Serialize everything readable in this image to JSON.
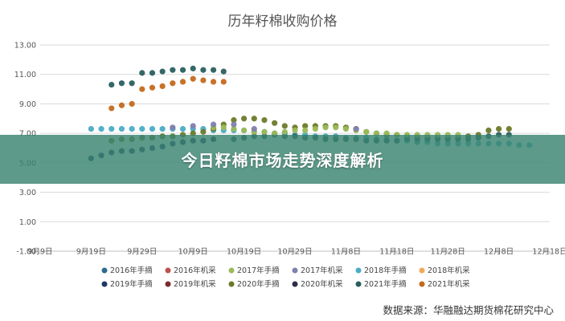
{
  "chart_data": {
    "type": "scatter",
    "title": "历年籽棉收购价格",
    "xlabel": "",
    "ylabel": "",
    "ylim": [
      -1,
      13
    ],
    "yticks": [
      "-1.00",
      "1.00",
      "3.00",
      "5.00",
      "7.00",
      "9.00",
      "11.00",
      "13.00"
    ],
    "xlim": [
      0,
      100
    ],
    "xticks": [
      "9月9日",
      "9月19日",
      "9月29日",
      "10月9日",
      "10月19日",
      "10月29日",
      "11月8日",
      "11月18日",
      "11月28日",
      "12月8日",
      "12月18日"
    ],
    "grid": true,
    "legend_position": "bottom",
    "series": [
      {
        "name": "2016年手摘",
        "color": "#2e6b8f",
        "x": [],
        "y": []
      },
      {
        "name": "2016年机采",
        "color": "#c0504d",
        "x": [],
        "y": []
      },
      {
        "name": "2017年手摘",
        "color": "#9bbb59",
        "x": [],
        "y": []
      },
      {
        "name": "2017年机采",
        "color": "#7f7fb0",
        "x": [],
        "y": []
      },
      {
        "name": "2018年手摘",
        "color": "#4bacc6",
        "x": [
          10,
          12,
          14,
          16,
          18,
          20,
          22,
          24,
          26,
          28,
          30,
          32,
          34,
          36,
          38,
          40,
          42,
          44,
          46,
          48,
          50,
          52,
          54,
          56,
          58,
          60,
          62,
          64,
          66,
          68,
          70,
          72,
          74,
          76,
          78,
          80,
          82,
          84,
          86,
          88,
          90,
          92,
          94,
          96
        ],
        "y": [
          7.3,
          7.3,
          7.3,
          7.3,
          7.3,
          7.3,
          7.3,
          7.3,
          7.3,
          7.3,
          7.3,
          7.3,
          7.2,
          7.2,
          7.2,
          7.2,
          7.1,
          7.1,
          7.0,
          7.0,
          6.9,
          6.9,
          6.8,
          6.8,
          6.8,
          6.7,
          6.7,
          6.7,
          6.6,
          6.6,
          6.5,
          6.5,
          6.4,
          6.4,
          6.3,
          6.3,
          6.3,
          6.3,
          6.3,
          6.3,
          6.3,
          6.3,
          6.2,
          6.2
        ]
      },
      {
        "name": "2018年机采",
        "color": "#f0a95a",
        "x": [],
        "y": []
      },
      {
        "name": "2019年手摘",
        "color": "#1f3864",
        "x": [],
        "y": []
      },
      {
        "name": "2019年机采",
        "color": "#7b2c2c",
        "x": [],
        "y": []
      },
      {
        "name": "2020年手摘",
        "color": "#6b7a2a",
        "x": [
          14,
          16,
          18,
          20,
          22,
          24,
          26,
          28,
          30,
          32,
          34,
          36,
          38,
          40,
          42,
          44,
          46,
          48,
          50,
          52,
          54,
          56,
          58,
          60,
          62,
          64,
          66,
          68,
          70,
          72,
          74,
          76,
          78,
          80,
          82,
          84,
          86,
          88,
          90,
          92
        ],
        "y": [
          6.5,
          6.6,
          6.6,
          6.7,
          6.7,
          6.8,
          6.8,
          6.9,
          7.0,
          7.1,
          7.3,
          7.6,
          7.9,
          8.0,
          8.0,
          7.9,
          7.7,
          7.5,
          7.4,
          7.5,
          7.5,
          7.5,
          7.5,
          7.4,
          7.3,
          7.1,
          7.0,
          6.9,
          6.9,
          6.8,
          6.8,
          6.7,
          6.7,
          6.7,
          6.7,
          6.8,
          6.9,
          7.2,
          7.3,
          7.3
        ]
      },
      {
        "name": "2020年机采",
        "color": "#2e2e48",
        "x": [],
        "y": []
      },
      {
        "name": "2021年手摘",
        "color": "#2b5f5f",
        "x": [
          14,
          16,
          18,
          20,
          22,
          24,
          26,
          28,
          30,
          32,
          34,
          36,
          38,
          40,
          42,
          44,
          46,
          48,
          50,
          52,
          54,
          56,
          58,
          60,
          62,
          64,
          66,
          68,
          70,
          72,
          74,
          76,
          78,
          80,
          82,
          84,
          86,
          88,
          90,
          92
        ],
        "y": [
          10.3,
          10.4,
          10.4,
          11.1,
          11.1,
          11.2,
          11.3,
          11.3,
          11.4,
          11.3,
          11.3,
          11.2,
          6.6,
          6.7,
          6.8,
          6.8,
          6.9,
          6.8,
          6.8,
          6.7,
          6.7,
          6.6,
          6.6,
          6.6,
          6.6,
          6.5,
          6.5,
          6.5,
          6.5,
          6.6,
          6.6,
          6.6,
          6.6,
          6.6,
          6.6,
          6.6,
          6.7,
          6.8,
          6.9,
          6.9
        ]
      },
      {
        "name": "2021年机采",
        "color": "#c46a1c",
        "x": [
          14,
          16,
          18,
          20,
          22,
          24,
          26,
          28,
          30,
          32,
          34,
          36
        ],
        "y": [
          8.7,
          8.9,
          9.0,
          10.0,
          10.1,
          10.2,
          10.4,
          10.5,
          10.7,
          10.6,
          10.5,
          10.5
        ]
      }
    ],
    "extra_series": [
      {
        "name": "2017年手摘",
        "color": "#9bbb59",
        "x": [
          34,
          36,
          38,
          40,
          42,
          44,
          46,
          48,
          50,
          52,
          54,
          56,
          58,
          60,
          62,
          64,
          66,
          68,
          70,
          72,
          74,
          76,
          78,
          80,
          82
        ],
        "y": [
          7.4,
          7.4,
          7.3,
          7.2,
          7.1,
          7.1,
          7.0,
          7.1,
          7.2,
          7.2,
          7.3,
          7.4,
          7.4,
          7.3,
          7.2,
          7.1,
          7.0,
          7.0,
          6.9,
          6.9,
          6.9,
          6.9,
          6.9,
          6.9,
          6.9
        ]
      },
      {
        "name": "2019年手摘",
        "color": "#1f3864",
        "x": [
          10,
          12,
          14,
          16,
          18,
          20,
          22,
          24,
          26,
          28,
          30,
          32,
          34
        ],
        "y": [
          5.3,
          5.5,
          5.7,
          5.8,
          5.8,
          5.9,
          6.0,
          6.1,
          6.3,
          6.4,
          6.5,
          6.5,
          6.6
        ]
      },
      {
        "name": "2017年机采",
        "color": "#7f7fb0",
        "x": [
          26,
          30,
          34,
          38,
          42,
          62
        ],
        "y": [
          7.4,
          7.5,
          7.6,
          7.6,
          7.3,
          7.3
        ]
      }
    ],
    "source": "数据来源：华融融达期货棉花研究中心"
  },
  "overlay_title": "今日籽棉市场走势深度解析"
}
